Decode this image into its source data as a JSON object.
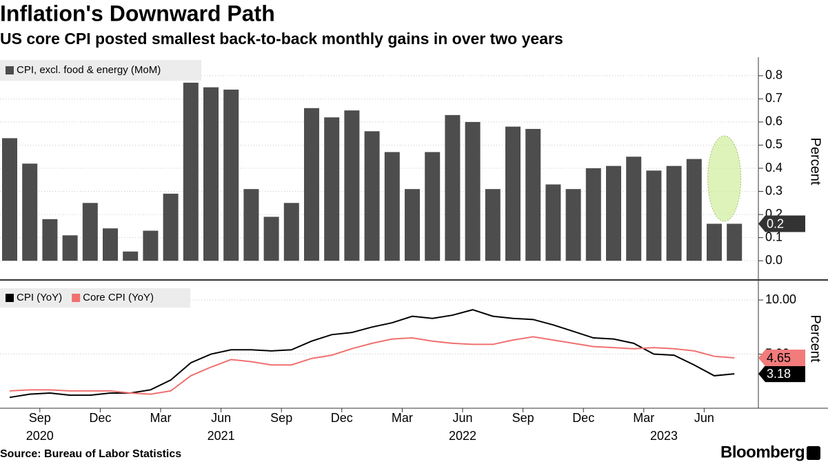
{
  "title": "Inflation's Downward Path",
  "subtitle": "US core CPI posted smallest back-to-back monthly gains in over two years",
  "source": "Source: Bureau of Labor Statistics",
  "brand": "Bloomberg",
  "chart_data": [
    {
      "type": "bar",
      "series": [
        {
          "name": "CPI, excl. food & energy (MoM)",
          "color": "#4d4d4d",
          "values": [
            0.53,
            0.42,
            0.18,
            0.11,
            0.25,
            0.14,
            0.04,
            0.13,
            0.29,
            0.77,
            0.75,
            0.74,
            0.31,
            0.19,
            0.25,
            0.66,
            0.62,
            0.65,
            0.56,
            0.47,
            0.31,
            0.47,
            0.63,
            0.6,
            0.31,
            0.58,
            0.57,
            0.33,
            0.31,
            0.4,
            0.41,
            0.45,
            0.39,
            0.41,
            0.44,
            0.16,
            0.16
          ],
          "end_label": "0.2"
        }
      ],
      "ylim": [
        -0.08,
        0.88
      ],
      "yticks": [
        {
          "value": 0,
          "label": "0.0"
        },
        0.1,
        0.2,
        0.3,
        0.4,
        0.5,
        0.6,
        0.7,
        0.8
      ],
      "y_label": "Percent",
      "grid": true
    },
    {
      "type": "line",
      "categories": [
        null,
        null,
        "Sep",
        null,
        null,
        "Dec",
        null,
        null,
        "Mar",
        null,
        null,
        "Jun",
        null,
        null,
        "Sep",
        null,
        null,
        "Dec",
        null,
        null,
        "Mar",
        null,
        null,
        "Jun",
        null,
        null,
        "Sep",
        null,
        null,
        "Dec",
        null,
        null,
        "Mar",
        null,
        null,
        "Jun",
        null
      ],
      "years": [
        {
          "label": "2020",
          "index": 2
        },
        {
          "label": "2021",
          "index": 11
        },
        {
          "label": "2022",
          "index": 23
        },
        {
          "label": "2023",
          "index": 33
        }
      ],
      "series": [
        {
          "name": "CPI (YoY)",
          "color": "#000000",
          "label_color": "#000000",
          "values": [
            1.0,
            1.3,
            1.4,
            1.2,
            1.2,
            1.4,
            1.4,
            1.7,
            2.6,
            4.2,
            5.0,
            5.4,
            5.4,
            5.3,
            5.4,
            6.2,
            6.8,
            7.0,
            7.5,
            7.9,
            8.5,
            8.3,
            8.6,
            9.1,
            8.5,
            8.3,
            8.2,
            7.7,
            7.1,
            6.5,
            6.4,
            6.0,
            5.0,
            4.9,
            4.0,
            3.0,
            3.18
          ],
          "end_label": "3.18"
        },
        {
          "name": "Core CPI (YoY)",
          "color": "#f07070",
          "label_color": "#f27b7b",
          "values": [
            1.6,
            1.7,
            1.7,
            1.6,
            1.6,
            1.6,
            1.4,
            1.3,
            1.6,
            3.0,
            3.8,
            4.5,
            4.3,
            4.0,
            4.0,
            4.6,
            4.9,
            5.5,
            6.0,
            6.4,
            6.5,
            6.2,
            6.0,
            5.9,
            5.9,
            6.3,
            6.6,
            6.3,
            6.0,
            5.7,
            5.6,
            5.5,
            5.6,
            5.5,
            5.3,
            4.8,
            4.65
          ],
          "end_label": "4.65"
        }
      ],
      "ylim": [
        0,
        11.6
      ],
      "yticks": [
        {
          "value": 5,
          "label": "5.00"
        },
        {
          "value": 10,
          "label": "10.00"
        }
      ],
      "y_label": "Percent",
      "grid": true
    }
  ]
}
